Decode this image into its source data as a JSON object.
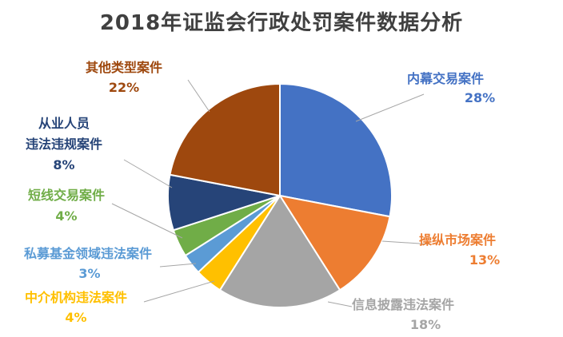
{
  "chart_data": {
    "type": "pie",
    "title": "2018年证监会行政处罚案件数据分析",
    "slices": [
      {
        "name": "内幕交易案件",
        "value": 28,
        "label": "28%",
        "color": "#4472C4"
      },
      {
        "name": "操纵市场案件",
        "value": 13,
        "label": "13%",
        "color": "#ED7D31"
      },
      {
        "name": "信息披露违法案件",
        "value": 18,
        "label": "18%",
        "color": "#A5A5A5"
      },
      {
        "name": "中介机构违法案件",
        "value": 4,
        "label": "4%",
        "color": "#FFC000"
      },
      {
        "name": "私募基金领域违法案件",
        "value": 3,
        "label": "3%",
        "color": "#5B9BD5"
      },
      {
        "name": "短线交易案件",
        "value": 4,
        "label": "4%",
        "color": "#70AD47"
      },
      {
        "name": "从业人员违法违规案件",
        "value": 8,
        "label": "8%",
        "color": "#264478"
      },
      {
        "name": "其他类型案件",
        "value": 22,
        "label": "22%",
        "color": "#9E480E"
      }
    ]
  }
}
